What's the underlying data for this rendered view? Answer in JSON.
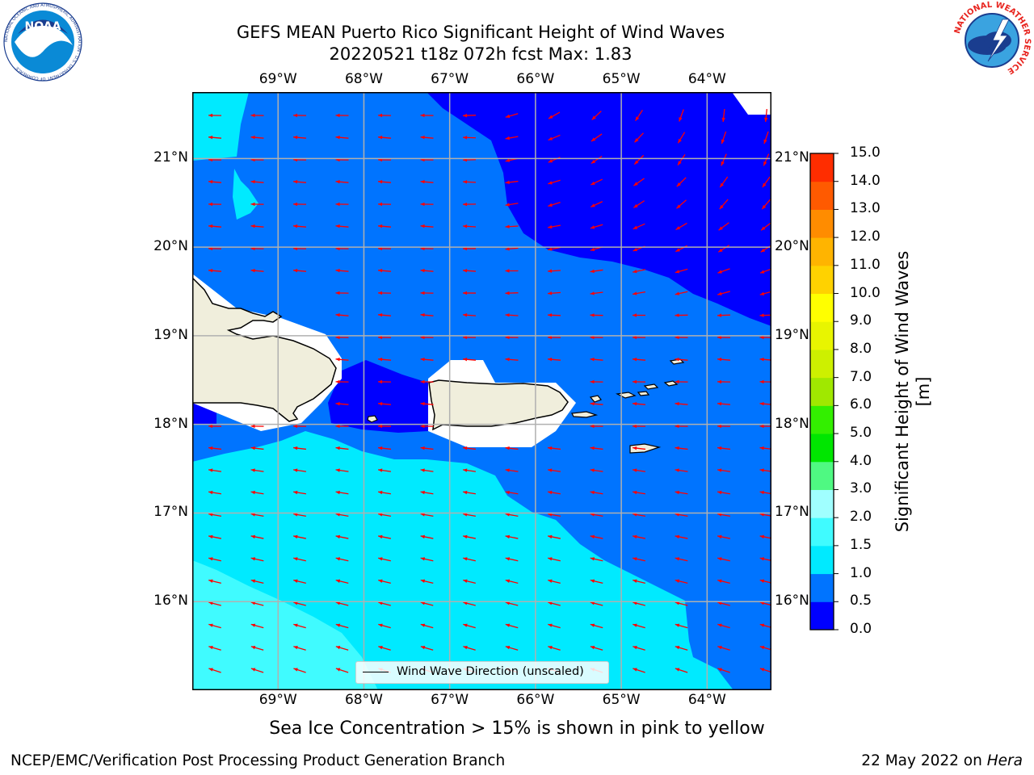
{
  "title": {
    "line1": "GEFS MEAN Puerto Rico Significant Height of Wind Waves",
    "line2": "20220521 t18z 072h fcst   Max: 1.83"
  },
  "map": {
    "lon_labels": [
      "69°W",
      "68°W",
      "67°W",
      "66°W",
      "65°W",
      "64°W"
    ],
    "lat_labels": [
      "21°N",
      "20°N",
      "19°N",
      "18°N",
      "17°N",
      "16°N"
    ],
    "lon_range": [
      -70.0,
      -63.25
    ],
    "lat_range": [
      15.0,
      21.75
    ],
    "legend_label": "Wind Wave Direction (unscaled)",
    "arrow_color": "#ff0000",
    "land_color": "#f0eedc"
  },
  "colorbar": {
    "label": "Significant Height of Wind Waves [m]",
    "ticks": [
      "0.0",
      "0.5",
      "1.0",
      "1.5",
      "2.0",
      "3.0",
      "4.0",
      "5.0",
      "6.0",
      "7.0",
      "8.0",
      "9.0",
      "10.0",
      "11.0",
      "12.0",
      "13.0",
      "14.0",
      "15.0"
    ],
    "colors": [
      "#0000ff",
      "#0074ff",
      "#00eaff",
      "#40fbff",
      "#a0ffff",
      "#4ff982",
      "#00e600",
      "#33ef00",
      "#a0e800",
      "#cdf000",
      "#e8f500",
      "#ffff00",
      "#ffd200",
      "#ffb400",
      "#ff8c00",
      "#ff5a00",
      "#ff2d00"
    ]
  },
  "note": "Sea Ice Concentration > 15% is shown in pink to yellow",
  "credit": "NCEP/EMC/Verification Post Processing Product Generation Branch",
  "date": "22 May 2022 on",
  "host": "Hera",
  "logos": {
    "noaa_text": "NOAA",
    "noaa_ring": "NATIONAL OCEANIC AND ATMOSPHERIC ADMINISTRATION · U.S. DEPARTMENT OF COMMERCE",
    "nws_ring": "NATIONAL WEATHER SERVICE"
  }
}
